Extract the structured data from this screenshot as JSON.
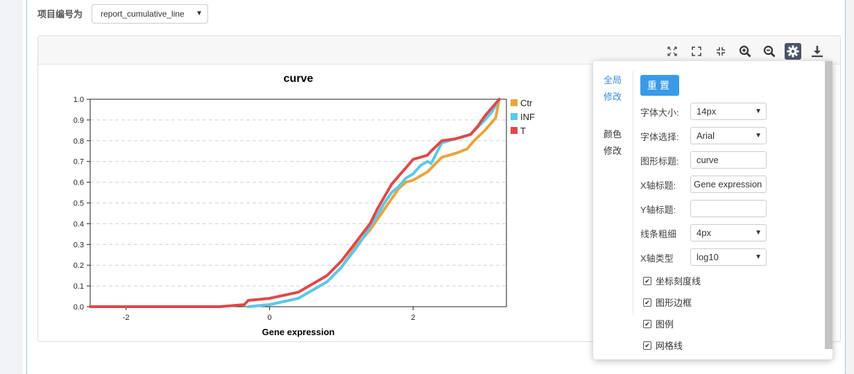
{
  "header": {
    "project_label": "项目编号为",
    "project_value": "report_cumulative_line"
  },
  "toolbar": {
    "icons": [
      "zoom-fit-icon",
      "fullscreen-icon",
      "exit-fullscreen-icon",
      "zoom-in-icon",
      "zoom-out-icon",
      "gear-icon",
      "download-icon"
    ]
  },
  "settings": {
    "tabs": {
      "global": [
        "全局",
        "修改"
      ],
      "color": [
        "颜色",
        "修改"
      ]
    },
    "reset_label": "重置",
    "rows": {
      "font_size": {
        "label": "字体大小:",
        "value": "14px"
      },
      "font_choice": {
        "label": "字体选择:",
        "value": "Arial"
      },
      "chart_title": {
        "label": "图形标题:",
        "value": "curve"
      },
      "x_title": {
        "label": "X轴标题:",
        "value": "Gene expression"
      },
      "y_title": {
        "label": "Y轴标题:",
        "value": ""
      },
      "line_width": {
        "label": "线条粗细",
        "value": "4px"
      },
      "x_type": {
        "label": "X轴类型",
        "value": "log10"
      }
    },
    "checks": {
      "ticks": "坐标刻度线",
      "border": "图形边框",
      "legend": "图例",
      "grid": "网格线"
    }
  },
  "chart_data": {
    "type": "line",
    "title": "curve",
    "xlabel": "Gene expression",
    "ylabel": "",
    "xlim": [
      -2.5,
      3.3
    ],
    "ylim": [
      0,
      1.0
    ],
    "x_ticks": [
      "-2",
      "0",
      "2"
    ],
    "x_tick_values": [
      -2,
      0,
      2
    ],
    "y_ticks": [
      "0.0",
      "0.1",
      "0.2",
      "0.3",
      "0.4",
      "0.5",
      "0.6",
      "0.7",
      "0.8",
      "0.9",
      "1.0"
    ],
    "grid": true,
    "legend_position": "right-top",
    "colors": {
      "Ctr": "#e8a43c",
      "INF": "#5bc8ea",
      "T": "#e04848"
    },
    "series": [
      {
        "name": "Ctr",
        "x": [
          -0.3,
          0.0,
          0.4,
          0.8,
          1.0,
          1.2,
          1.4,
          1.5,
          1.6,
          1.7,
          1.8,
          1.9,
          2.0,
          2.1,
          2.2,
          2.4,
          2.6,
          2.75,
          2.85,
          3.0,
          3.15,
          3.2
        ],
        "y": [
          0.0,
          0.01,
          0.04,
          0.12,
          0.19,
          0.29,
          0.37,
          0.42,
          0.47,
          0.52,
          0.57,
          0.6,
          0.61,
          0.63,
          0.65,
          0.72,
          0.74,
          0.76,
          0.8,
          0.85,
          0.91,
          1.0
        ]
      },
      {
        "name": "INF",
        "x": [
          -0.3,
          0.0,
          0.4,
          0.8,
          1.0,
          1.2,
          1.3,
          1.5,
          1.6,
          1.7,
          1.8,
          1.9,
          2.0,
          2.1,
          2.2,
          2.25,
          2.4,
          2.6,
          2.8,
          3.0,
          3.1,
          3.2
        ],
        "y": [
          0.0,
          0.01,
          0.04,
          0.12,
          0.19,
          0.28,
          0.33,
          0.44,
          0.5,
          0.55,
          0.58,
          0.62,
          0.64,
          0.68,
          0.7,
          0.69,
          0.79,
          0.81,
          0.83,
          0.9,
          0.94,
          1.0
        ]
      },
      {
        "name": "T",
        "x": [
          -2.5,
          -0.7,
          -0.35,
          -0.3,
          0.0,
          0.4,
          0.8,
          1.0,
          1.2,
          1.4,
          1.5,
          1.6,
          1.7,
          1.8,
          1.9,
          2.0,
          2.1,
          2.2,
          2.25,
          2.4,
          2.6,
          2.8,
          2.9,
          3.0,
          3.1,
          3.2
        ],
        "y": [
          0.0,
          0.0,
          0.01,
          0.03,
          0.04,
          0.07,
          0.15,
          0.22,
          0.31,
          0.4,
          0.47,
          0.53,
          0.59,
          0.63,
          0.67,
          0.71,
          0.72,
          0.73,
          0.75,
          0.8,
          0.81,
          0.83,
          0.87,
          0.92,
          0.96,
          1.0
        ]
      }
    ]
  }
}
